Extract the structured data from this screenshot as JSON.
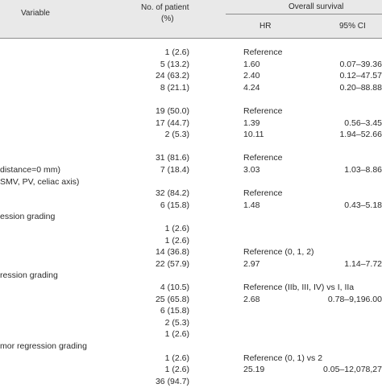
{
  "header": {
    "variable": "Variable",
    "patients_line1": "No. of patient",
    "patients_line2": "(%)",
    "overall_survival": "Overall survival",
    "hr": "HR",
    "ci": "95% CI"
  },
  "rows": [
    {
      "variable": "",
      "patients": "1 (2.6)",
      "hr": "Reference",
      "ci": ""
    },
    {
      "variable": "",
      "patients": "5 (13.2)",
      "hr": "1.60",
      "ci": "0.07–39.36"
    },
    {
      "variable": "",
      "patients": "24 (63.2)",
      "hr": "2.40",
      "ci": "0.12–47.57"
    },
    {
      "variable": "",
      "patients": "8 (21.1)",
      "hr": "4.24",
      "ci": "0.20–88.88"
    },
    {
      "variable": "",
      "patients": "",
      "hr": "",
      "ci": ""
    },
    {
      "variable": "",
      "patients": "19 (50.0)",
      "hr": "Reference",
      "ci": ""
    },
    {
      "variable": "",
      "patients": "17 (44.7)",
      "hr": "1.39",
      "ci": "0.56–3.45"
    },
    {
      "variable": "",
      "patients": "2 (5.3)",
      "hr": "10.11",
      "ci": "1.94–52.66"
    },
    {
      "variable": "",
      "patients": "",
      "hr": "",
      "ci": ""
    },
    {
      "variable": "",
      "patients": "31 (81.6)",
      "hr": "Reference",
      "ci": ""
    },
    {
      "variable": "distance=0 mm)",
      "patients": "7 (18.4)",
      "hr": "3.03",
      "ci": "1.03–8.86"
    },
    {
      "variable": "SMV, PV, celiac axis)",
      "patients": "",
      "hr": "",
      "ci": ""
    },
    {
      "variable": "",
      "patients": "32 (84.2)",
      "hr": "Reference",
      "ci": ""
    },
    {
      "variable": "",
      "patients": "6 (15.8)",
      "hr": "1.48",
      "ci": "0.43–5.18"
    },
    {
      "variable": "ession grading",
      "patients": "",
      "hr": "",
      "ci": ""
    },
    {
      "variable": "",
      "patients": "1 (2.6)",
      "hr": "",
      "ci": ""
    },
    {
      "variable": "",
      "patients": "1 (2.6)",
      "hr": "",
      "ci": ""
    },
    {
      "variable": "",
      "patients": "14 (36.8)",
      "hr": "Reference (0, 1, 2)",
      "ci": ""
    },
    {
      "variable": "",
      "patients": "22 (57.9)",
      "hr": "2.97",
      "ci": "1.14–7.72"
    },
    {
      "variable": "ression grading",
      "patients": "",
      "hr": "",
      "ci": ""
    },
    {
      "variable": "",
      "patients": "4 (10.5)",
      "hr": "Reference (IIb, III, IV) vs I, IIa",
      "ci": ""
    },
    {
      "variable": "",
      "patients": "25 (65.8)",
      "hr": "2.68",
      "ci": "0.78–9,196.00"
    },
    {
      "variable": "",
      "patients": "6 (15.8)",
      "hr": "",
      "ci": ""
    },
    {
      "variable": "",
      "patients": "2 (5.3)",
      "hr": "",
      "ci": ""
    },
    {
      "variable": "",
      "patients": "1 (2.6)",
      "hr": "",
      "ci": ""
    },
    {
      "variable": "mor regression grading",
      "patients": "",
      "hr": "",
      "ci": ""
    },
    {
      "variable": "",
      "patients": "1 (2.6)",
      "hr": "Reference (0, 1) vs 2",
      "ci": ""
    },
    {
      "variable": "",
      "patients": "1 (2.6)",
      "hr": "25.19",
      "ci": "0.05–12,078,27"
    },
    {
      "variable": "",
      "patients": "36 (94.7)",
      "hr": "",
      "ci": ""
    }
  ]
}
